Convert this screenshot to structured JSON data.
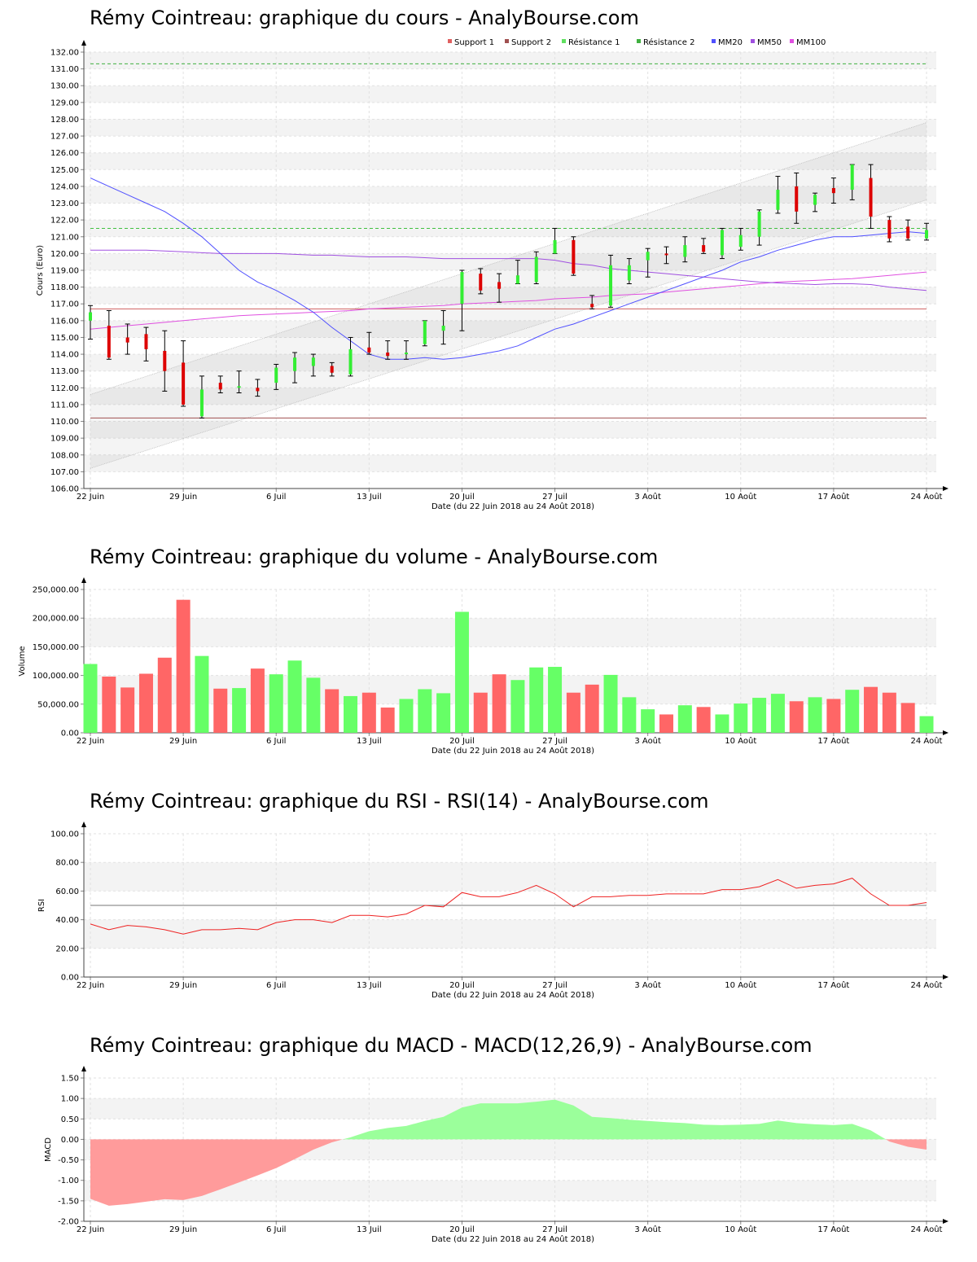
{
  "titles": {
    "price": "Rémy Cointreau: graphique du cours - AnalyBourse.com",
    "volume": "Rémy Cointreau: graphique du volume - AnalyBourse.com",
    "rsi": "Rémy Cointreau: graphique du RSI - RSI(14) - AnalyBourse.com",
    "macd": "Rémy Cointreau: graphique du MACD - MACD(12,26,9) - AnalyBourse.com"
  },
  "legend": [
    {
      "name": "Support 1",
      "color": "#e06060"
    },
    {
      "name": "Support 2",
      "color": "#a05050"
    },
    {
      "name": "Résistance 1",
      "color": "#60e060"
    },
    {
      "name": "Résistance 2",
      "color": "#40b040"
    },
    {
      "name": "MM20",
      "color": "#5050ff"
    },
    {
      "name": "MM50",
      "color": "#a050e0"
    },
    {
      "name": "MM100",
      "color": "#e050e0"
    }
  ],
  "colors": {
    "up": "#66ff66",
    "down": "#ff6666",
    "candle_up": "#33ee33",
    "candle_down": "#dd0000"
  },
  "chart_data": [
    {
      "type": "candlestick",
      "title": "Rémy Cointreau: graphique du cours - AnalyBourse.com",
      "xlabel": "Date (du 22 Juin 2018 au 24 Août 2018)",
      "ylabel": "Cours (Euro)",
      "ylim": [
        106,
        132
      ],
      "ytick_step": 1,
      "grid": true,
      "legend_position": "top-right",
      "x_ticks": [
        {
          "i": 0,
          "label": "22 Juin"
        },
        {
          "i": 5,
          "label": "29 Juin"
        },
        {
          "i": 10,
          "label": "6 Juil"
        },
        {
          "i": 15,
          "label": "13 Juil"
        },
        {
          "i": 20,
          "label": "20 Juil"
        },
        {
          "i": 25,
          "label": "27 Juil"
        },
        {
          "i": 30,
          "label": "3 Août"
        },
        {
          "i": 35,
          "label": "10 Août"
        },
        {
          "i": 40,
          "label": "17 Août"
        },
        {
          "i": 45,
          "label": "24 Août"
        }
      ],
      "ohlc": [
        [
          116.0,
          116.9,
          114.9,
          116.5
        ],
        [
          115.7,
          116.6,
          113.7,
          113.8
        ],
        [
          115.0,
          115.8,
          114.0,
          114.7
        ],
        [
          115.2,
          115.6,
          113.6,
          114.3
        ],
        [
          114.2,
          115.4,
          111.8,
          113.0
        ],
        [
          113.5,
          114.8,
          110.9,
          111.0
        ],
        [
          110.3,
          112.7,
          110.2,
          111.9
        ],
        [
          112.3,
          112.7,
          111.7,
          111.9
        ],
        [
          112.0,
          113.0,
          111.7,
          112.1
        ],
        [
          112.0,
          112.5,
          111.5,
          111.8
        ],
        [
          112.3,
          113.4,
          111.9,
          113.2
        ],
        [
          113.0,
          114.1,
          112.3,
          113.8
        ],
        [
          113.3,
          114.0,
          112.7,
          113.8
        ],
        [
          113.3,
          113.5,
          112.7,
          112.9
        ],
        [
          112.8,
          115.0,
          112.7,
          114.3
        ],
        [
          114.4,
          115.3,
          114.0,
          114.1
        ],
        [
          114.1,
          114.8,
          113.7,
          113.9
        ],
        [
          114.0,
          114.8,
          113.7,
          114.1
        ],
        [
          114.6,
          116.0,
          114.5,
          116.0
        ],
        [
          115.4,
          116.6,
          114.6,
          115.7
        ],
        [
          117.0,
          119.0,
          115.4,
          118.9
        ],
        [
          118.8,
          119.1,
          117.6,
          117.8
        ],
        [
          118.3,
          118.8,
          117.1,
          117.9
        ],
        [
          118.2,
          119.6,
          118.2,
          118.7
        ],
        [
          118.3,
          120.1,
          118.2,
          119.8
        ],
        [
          120.0,
          121.5,
          120.0,
          120.8
        ],
        [
          120.8,
          121.0,
          118.7,
          118.8
        ],
        [
          117.0,
          117.5,
          116.7,
          116.8
        ],
        [
          116.9,
          119.9,
          116.8,
          119.3
        ],
        [
          118.4,
          119.7,
          118.2,
          119.3
        ],
        [
          119.6,
          120.3,
          118.6,
          120.1
        ],
        [
          120.0,
          120.4,
          119.4,
          119.9
        ],
        [
          119.8,
          121.0,
          119.5,
          120.5
        ],
        [
          120.5,
          120.9,
          120.0,
          120.1
        ],
        [
          119.9,
          121.5,
          119.7,
          121.4
        ],
        [
          120.4,
          121.5,
          120.2,
          121.1
        ],
        [
          121.0,
          122.6,
          120.5,
          122.5
        ],
        [
          122.6,
          124.6,
          122.4,
          123.8
        ],
        [
          124.0,
          124.8,
          121.8,
          122.5
        ],
        [
          122.9,
          123.6,
          122.5,
          123.5
        ],
        [
          123.9,
          124.5,
          123.0,
          123.6
        ],
        [
          123.8,
          125.3,
          123.2,
          125.3
        ],
        [
          124.5,
          125.3,
          121.5,
          122.2
        ],
        [
          122.0,
          122.2,
          120.7,
          120.9
        ],
        [
          121.6,
          122.0,
          120.8,
          120.9
        ],
        [
          120.9,
          121.8,
          120.8,
          121.4
        ]
      ],
      "support": [
        116.7,
        110.2
      ],
      "resistance": [
        121.5,
        131.3
      ],
      "channel": {
        "mid": [
          109.4,
          125.5
        ],
        "upper": [
          111.6,
          127.8
        ],
        "lower": [
          107.2,
          123.2
        ]
      },
      "mm20": [
        124.5,
        124.0,
        123.5,
        123.0,
        122.5,
        121.8,
        121.0,
        120.0,
        119.0,
        118.3,
        117.8,
        117.2,
        116.5,
        115.6,
        114.8,
        114.0,
        113.7,
        113.7,
        113.8,
        113.7,
        113.8,
        114.0,
        114.2,
        114.5,
        115.0,
        115.5,
        115.8,
        116.2,
        116.6,
        117.0,
        117.4,
        117.8,
        118.2,
        118.6,
        119.0,
        119.5,
        119.8,
        120.2,
        120.5,
        120.8,
        121.0,
        121.0,
        121.1,
        121.2,
        121.3,
        121.2
      ],
      "mm50": [
        120.2,
        120.2,
        120.2,
        120.2,
        120.15,
        120.1,
        120.05,
        120.0,
        120.0,
        120.0,
        120.0,
        119.95,
        119.9,
        119.9,
        119.85,
        119.8,
        119.8,
        119.8,
        119.75,
        119.7,
        119.7,
        119.7,
        119.7,
        119.7,
        119.7,
        119.6,
        119.4,
        119.3,
        119.1,
        119.0,
        118.9,
        118.8,
        118.7,
        118.6,
        118.5,
        118.4,
        118.3,
        118.25,
        118.2,
        118.15,
        118.2,
        118.2,
        118.15,
        118.0,
        117.9,
        117.8
      ],
      "mm100": [
        115.5,
        115.6,
        115.7,
        115.8,
        115.9,
        116.0,
        116.1,
        116.2,
        116.3,
        116.35,
        116.4,
        116.45,
        116.5,
        116.55,
        116.6,
        116.7,
        116.75,
        116.8,
        116.85,
        116.9,
        117.0,
        117.05,
        117.1,
        117.15,
        117.2,
        117.3,
        117.35,
        117.4,
        117.5,
        117.55,
        117.6,
        117.7,
        117.8,
        117.9,
        118.0,
        118.1,
        118.2,
        118.3,
        118.35,
        118.4,
        118.45,
        118.5,
        118.6,
        118.7,
        118.8,
        118.9
      ]
    },
    {
      "type": "bar",
      "title": "Rémy Cointreau: graphique du volume - AnalyBourse.com",
      "xlabel": "Date (du 22 Juin 2018 au 24 Août 2018)",
      "ylabel": "Volume",
      "ylim": [
        0,
        250000
      ],
      "ytick_step": 50000,
      "values": [
        120000,
        98000,
        79000,
        103000,
        131000,
        232000,
        134000,
        77000,
        78000,
        112000,
        102000,
        126000,
        96000,
        76000,
        64000,
        70000,
        44000,
        59000,
        76000,
        69000,
        211000,
        70000,
        102000,
        92000,
        114000,
        115000,
        70000,
        84000,
        101000,
        62000,
        41000,
        32000,
        48000,
        45000,
        32000,
        51000,
        61000,
        68000,
        55000,
        62000,
        59000,
        75000,
        80000,
        70000,
        52000,
        29000
      ],
      "up": [
        true,
        false,
        false,
        false,
        false,
        false,
        true,
        false,
        true,
        false,
        true,
        true,
        true,
        false,
        true,
        false,
        false,
        true,
        true,
        true,
        true,
        false,
        false,
        true,
        true,
        true,
        false,
        false,
        true,
        true,
        true,
        false,
        true,
        false,
        true,
        true,
        true,
        true,
        false,
        true,
        false,
        true,
        false,
        false,
        false,
        true
      ]
    },
    {
      "type": "line",
      "title": "Rémy Cointreau: graphique du RSI - RSI(14) - AnalyBourse.com",
      "xlabel": "Date (du 22 Juin 2018 au 24 Août 2018)",
      "ylabel": "RSI",
      "ylim": [
        0,
        100
      ],
      "ytick_step": 20,
      "reference_line": 50,
      "values": [
        37,
        33,
        36,
        35,
        33,
        30,
        33,
        33,
        34,
        33,
        38,
        40,
        40,
        38,
        43,
        43,
        42,
        44,
        50,
        49,
        59,
        56,
        56,
        59,
        64,
        58,
        49,
        56,
        56,
        57,
        57,
        58,
        58,
        58,
        61,
        61,
        63,
        68,
        62,
        64,
        65,
        69,
        58,
        50,
        50,
        52
      ]
    },
    {
      "type": "area",
      "title": "Rémy Cointreau: graphique du MACD - MACD(12,26,9) - AnalyBourse.com",
      "xlabel": "Date (du 22 Juin 2018 au 24 Août 2018)",
      "ylabel": "MACD",
      "ylim": [
        -2.0,
        1.5
      ],
      "ytick_step": 0.5,
      "values": [
        -1.45,
        -1.62,
        -1.58,
        -1.52,
        -1.46,
        -1.48,
        -1.38,
        -1.22,
        -1.05,
        -0.88,
        -0.7,
        -0.48,
        -0.25,
        -0.07,
        0.05,
        0.2,
        0.28,
        0.33,
        0.45,
        0.55,
        0.78,
        0.88,
        0.88,
        0.88,
        0.92,
        0.97,
        0.83,
        0.55,
        0.52,
        0.48,
        0.45,
        0.42,
        0.4,
        0.36,
        0.35,
        0.36,
        0.38,
        0.46,
        0.4,
        0.37,
        0.35,
        0.38,
        0.22,
        -0.05,
        -0.18,
        -0.25
      ]
    }
  ],
  "y_tick_labels": {
    "price": [
      "106.00",
      "107.00",
      "108.00",
      "109.00",
      "110.00",
      "111.00",
      "112.00",
      "113.00",
      "114.00",
      "115.00",
      "116.00",
      "117.00",
      "118.00",
      "119.00",
      "120.00",
      "121.00",
      "122.00",
      "123.00",
      "124.00",
      "125.00",
      "126.00",
      "127.00",
      "128.00",
      "129.00",
      "130.00",
      "131.00",
      "132.00"
    ],
    "volume": [
      "0.00",
      "50,000.00",
      "100,000.00",
      "150,000.00",
      "200,000.00",
      "250,000.00"
    ],
    "rsi": [
      "0.00",
      "20.00",
      "40.00",
      "60.00",
      "80.00",
      "100.00"
    ],
    "macd": [
      "-2.00",
      "-1.50",
      "-1.00",
      "-0.50",
      "0.00",
      "0.50",
      "1.00",
      "1.50"
    ]
  }
}
